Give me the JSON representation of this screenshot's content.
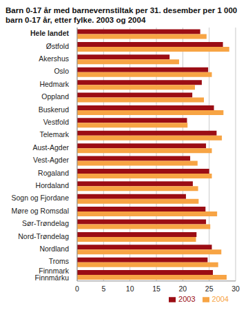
{
  "chart_data": {
    "type": "bar",
    "orientation": "horizontal",
    "title": "Barn 0-17 år med barnevernstiltak per 31. desember per 1 000 barn 0-17 år, etter fylke. 2003 og 2004",
    "categories": [
      "Hele landet",
      "Østfold",
      "Akershus",
      "Oslo",
      "Hedmark",
      "Oppland",
      "Buskerud",
      "Vestfold",
      "Telemark",
      "Aust-Agder",
      "Vest-Agder",
      "Rogaland",
      "Hordaland",
      "Sogn og Fjordane",
      "Møre og Romsdal",
      "Sør-Trøndelag",
      "Nord-Trøndelag",
      "Nordland",
      "Troms",
      "Finnmark\nFinnmárku"
    ],
    "series": [
      {
        "name": "2003",
        "color": "#9b0d14",
        "values": [
          23.3,
          27.6,
          17.5,
          24.8,
          23.6,
          21.8,
          25.9,
          20.8,
          26.4,
          24.4,
          21.4,
          25.0,
          21.9,
          20.6,
          24.3,
          24.4,
          22.6,
          25.5,
          24.7,
          25.7
        ]
      },
      {
        "name": "2004",
        "color": "#f7a444",
        "values": [
          24.5,
          28.8,
          19.3,
          25.5,
          22.3,
          24.0,
          27.7,
          20.9,
          27.4,
          25.5,
          22.8,
          25.5,
          22.9,
          23.0,
          26.5,
          25.2,
          22.5,
          27.3,
          26.7,
          28.3
        ]
      }
    ],
    "xlim": [
      0,
      30
    ],
    "xticks": [
      0,
      5,
      10,
      15,
      20,
      25,
      30
    ],
    "grid": true,
    "legend": "bottom right"
  }
}
